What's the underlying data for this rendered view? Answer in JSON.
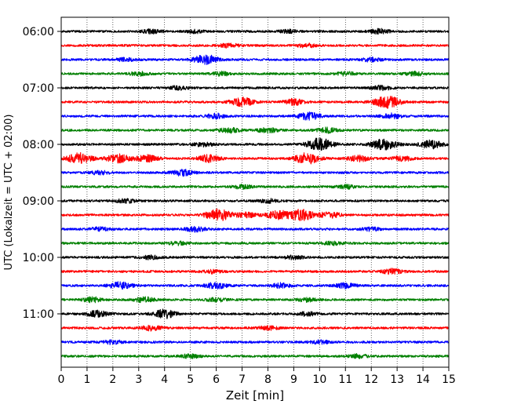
{
  "chart_data": {
    "type": "line",
    "title": "",
    "xlabel": "Zeit  [min]",
    "ylabel": "UTC (Lokalzeit = UTC + 02:00)",
    "xlim": [
      0,
      15
    ],
    "x_ticks": [
      0,
      1,
      2,
      3,
      4,
      5,
      6,
      7,
      8,
      9,
      10,
      11,
      12,
      13,
      14,
      15
    ],
    "x_tick_labels": [
      "0",
      "1",
      "2",
      "3",
      "4",
      "5",
      "6",
      "7",
      "8",
      "9",
      "10",
      "11",
      "12",
      "13",
      "14",
      "15"
    ],
    "y_tick_labels": [
      "06:00",
      "07:00",
      "08:00",
      "09:00",
      "10:00",
      "11:00"
    ],
    "y_tick_rows": [
      0,
      4,
      8,
      12,
      16,
      20
    ],
    "grid": {
      "x": true,
      "y": false,
      "style": "dotted"
    },
    "row_interval_minutes": 15,
    "series_colors": [
      "#000000",
      "#ff0000",
      "#0000ff",
      "#008000"
    ],
    "rows": [
      {
        "start": "06:00",
        "color": "#000000",
        "events": [
          [
            3.5,
            0.3
          ],
          [
            5.2,
            0.25
          ],
          [
            8.8,
            0.25
          ],
          [
            12.3,
            0.4
          ]
        ]
      },
      {
        "start": "06:15",
        "color": "#ff0000",
        "events": [
          [
            6.5,
            0.3
          ],
          [
            9.5,
            0.3
          ]
        ]
      },
      {
        "start": "06:30",
        "color": "#0000ff",
        "events": [
          [
            5.6,
            0.8
          ],
          [
            2.5,
            0.3
          ],
          [
            12.0,
            0.3
          ]
        ]
      },
      {
        "start": "06:45",
        "color": "#008000",
        "events": [
          [
            3.0,
            0.3
          ],
          [
            6.2,
            0.3
          ],
          [
            11.0,
            0.3
          ],
          [
            13.7,
            0.3
          ]
        ]
      },
      {
        "start": "07:00",
        "color": "#000000",
        "events": [
          [
            4.5,
            0.3
          ],
          [
            12.4,
            0.35
          ]
        ]
      },
      {
        "start": "07:15",
        "color": "#ff0000",
        "events": [
          [
            7.0,
            0.7
          ],
          [
            9.0,
            0.5
          ],
          [
            12.6,
            1.0
          ]
        ]
      },
      {
        "start": "07:30",
        "color": "#0000ff",
        "events": [
          [
            6.0,
            0.4
          ],
          [
            9.6,
            0.6
          ],
          [
            12.8,
            0.4
          ]
        ]
      },
      {
        "start": "07:45",
        "color": "#008000",
        "events": [
          [
            6.5,
            0.4
          ],
          [
            8.0,
            0.4
          ],
          [
            10.3,
            0.4
          ]
        ]
      },
      {
        "start": "08:00",
        "color": "#000000",
        "events": [
          [
            10.0,
            1.0
          ],
          [
            12.5,
            0.9
          ],
          [
            14.3,
            0.7
          ],
          [
            5.5,
            0.3
          ]
        ]
      },
      {
        "start": "08:15",
        "color": "#ff0000",
        "events": [
          [
            0.7,
            0.9
          ],
          [
            2.2,
            0.7
          ],
          [
            3.3,
            0.6
          ],
          [
            5.7,
            0.6
          ],
          [
            9.5,
            0.9
          ],
          [
            11.5,
            0.5
          ],
          [
            13.2,
            0.4
          ]
        ]
      },
      {
        "start": "08:30",
        "color": "#0000ff",
        "events": [
          [
            4.7,
            0.5
          ],
          [
            1.5,
            0.3
          ]
        ]
      },
      {
        "start": "08:45",
        "color": "#008000",
        "events": [
          [
            7.0,
            0.3
          ],
          [
            11.0,
            0.3
          ]
        ]
      },
      {
        "start": "09:00",
        "color": "#000000",
        "events": [
          [
            2.5,
            0.3
          ],
          [
            8.0,
            0.3
          ]
        ]
      },
      {
        "start": "09:15",
        "color": "#ff0000",
        "events": [
          [
            6.1,
            1.0
          ],
          [
            8.4,
            0.7
          ],
          [
            9.3,
            0.9
          ],
          [
            7.2,
            0.4
          ],
          [
            10.4,
            0.5
          ]
        ]
      },
      {
        "start": "09:30",
        "color": "#0000ff",
        "events": [
          [
            5.2,
            0.4
          ],
          [
            1.5,
            0.3
          ],
          [
            12.0,
            0.3
          ]
        ]
      },
      {
        "start": "09:45",
        "color": "#008000",
        "events": [
          [
            4.5,
            0.3
          ],
          [
            10.5,
            0.3
          ]
        ]
      },
      {
        "start": "10:00",
        "color": "#000000",
        "events": [
          [
            3.5,
            0.3
          ],
          [
            9.0,
            0.3
          ]
        ]
      },
      {
        "start": "10:15",
        "color": "#ff0000",
        "events": [
          [
            5.8,
            0.3
          ],
          [
            12.8,
            0.4
          ]
        ]
      },
      {
        "start": "10:30",
        "color": "#0000ff",
        "events": [
          [
            2.3,
            0.6
          ],
          [
            6.0,
            0.5
          ],
          [
            8.5,
            0.4
          ],
          [
            11.0,
            0.4
          ]
        ]
      },
      {
        "start": "10:45",
        "color": "#008000",
        "events": [
          [
            1.2,
            0.4
          ],
          [
            3.2,
            0.4
          ],
          [
            6.0,
            0.3
          ],
          [
            9.5,
            0.3
          ]
        ]
      },
      {
        "start": "11:00",
        "color": "#000000",
        "events": [
          [
            1.4,
            0.5
          ],
          [
            4.0,
            0.7
          ],
          [
            9.5,
            0.3
          ]
        ]
      },
      {
        "start": "11:15",
        "color": "#ff0000",
        "events": [
          [
            3.5,
            0.4
          ],
          [
            8.0,
            0.3
          ]
        ]
      },
      {
        "start": "11:30",
        "color": "#0000ff",
        "events": [
          [
            2.0,
            0.3
          ],
          [
            10.0,
            0.3
          ]
        ]
      },
      {
        "start": "11:45",
        "color": "#008000",
        "events": [
          [
            5.0,
            0.3
          ],
          [
            11.5,
            0.3
          ]
        ]
      }
    ]
  }
}
